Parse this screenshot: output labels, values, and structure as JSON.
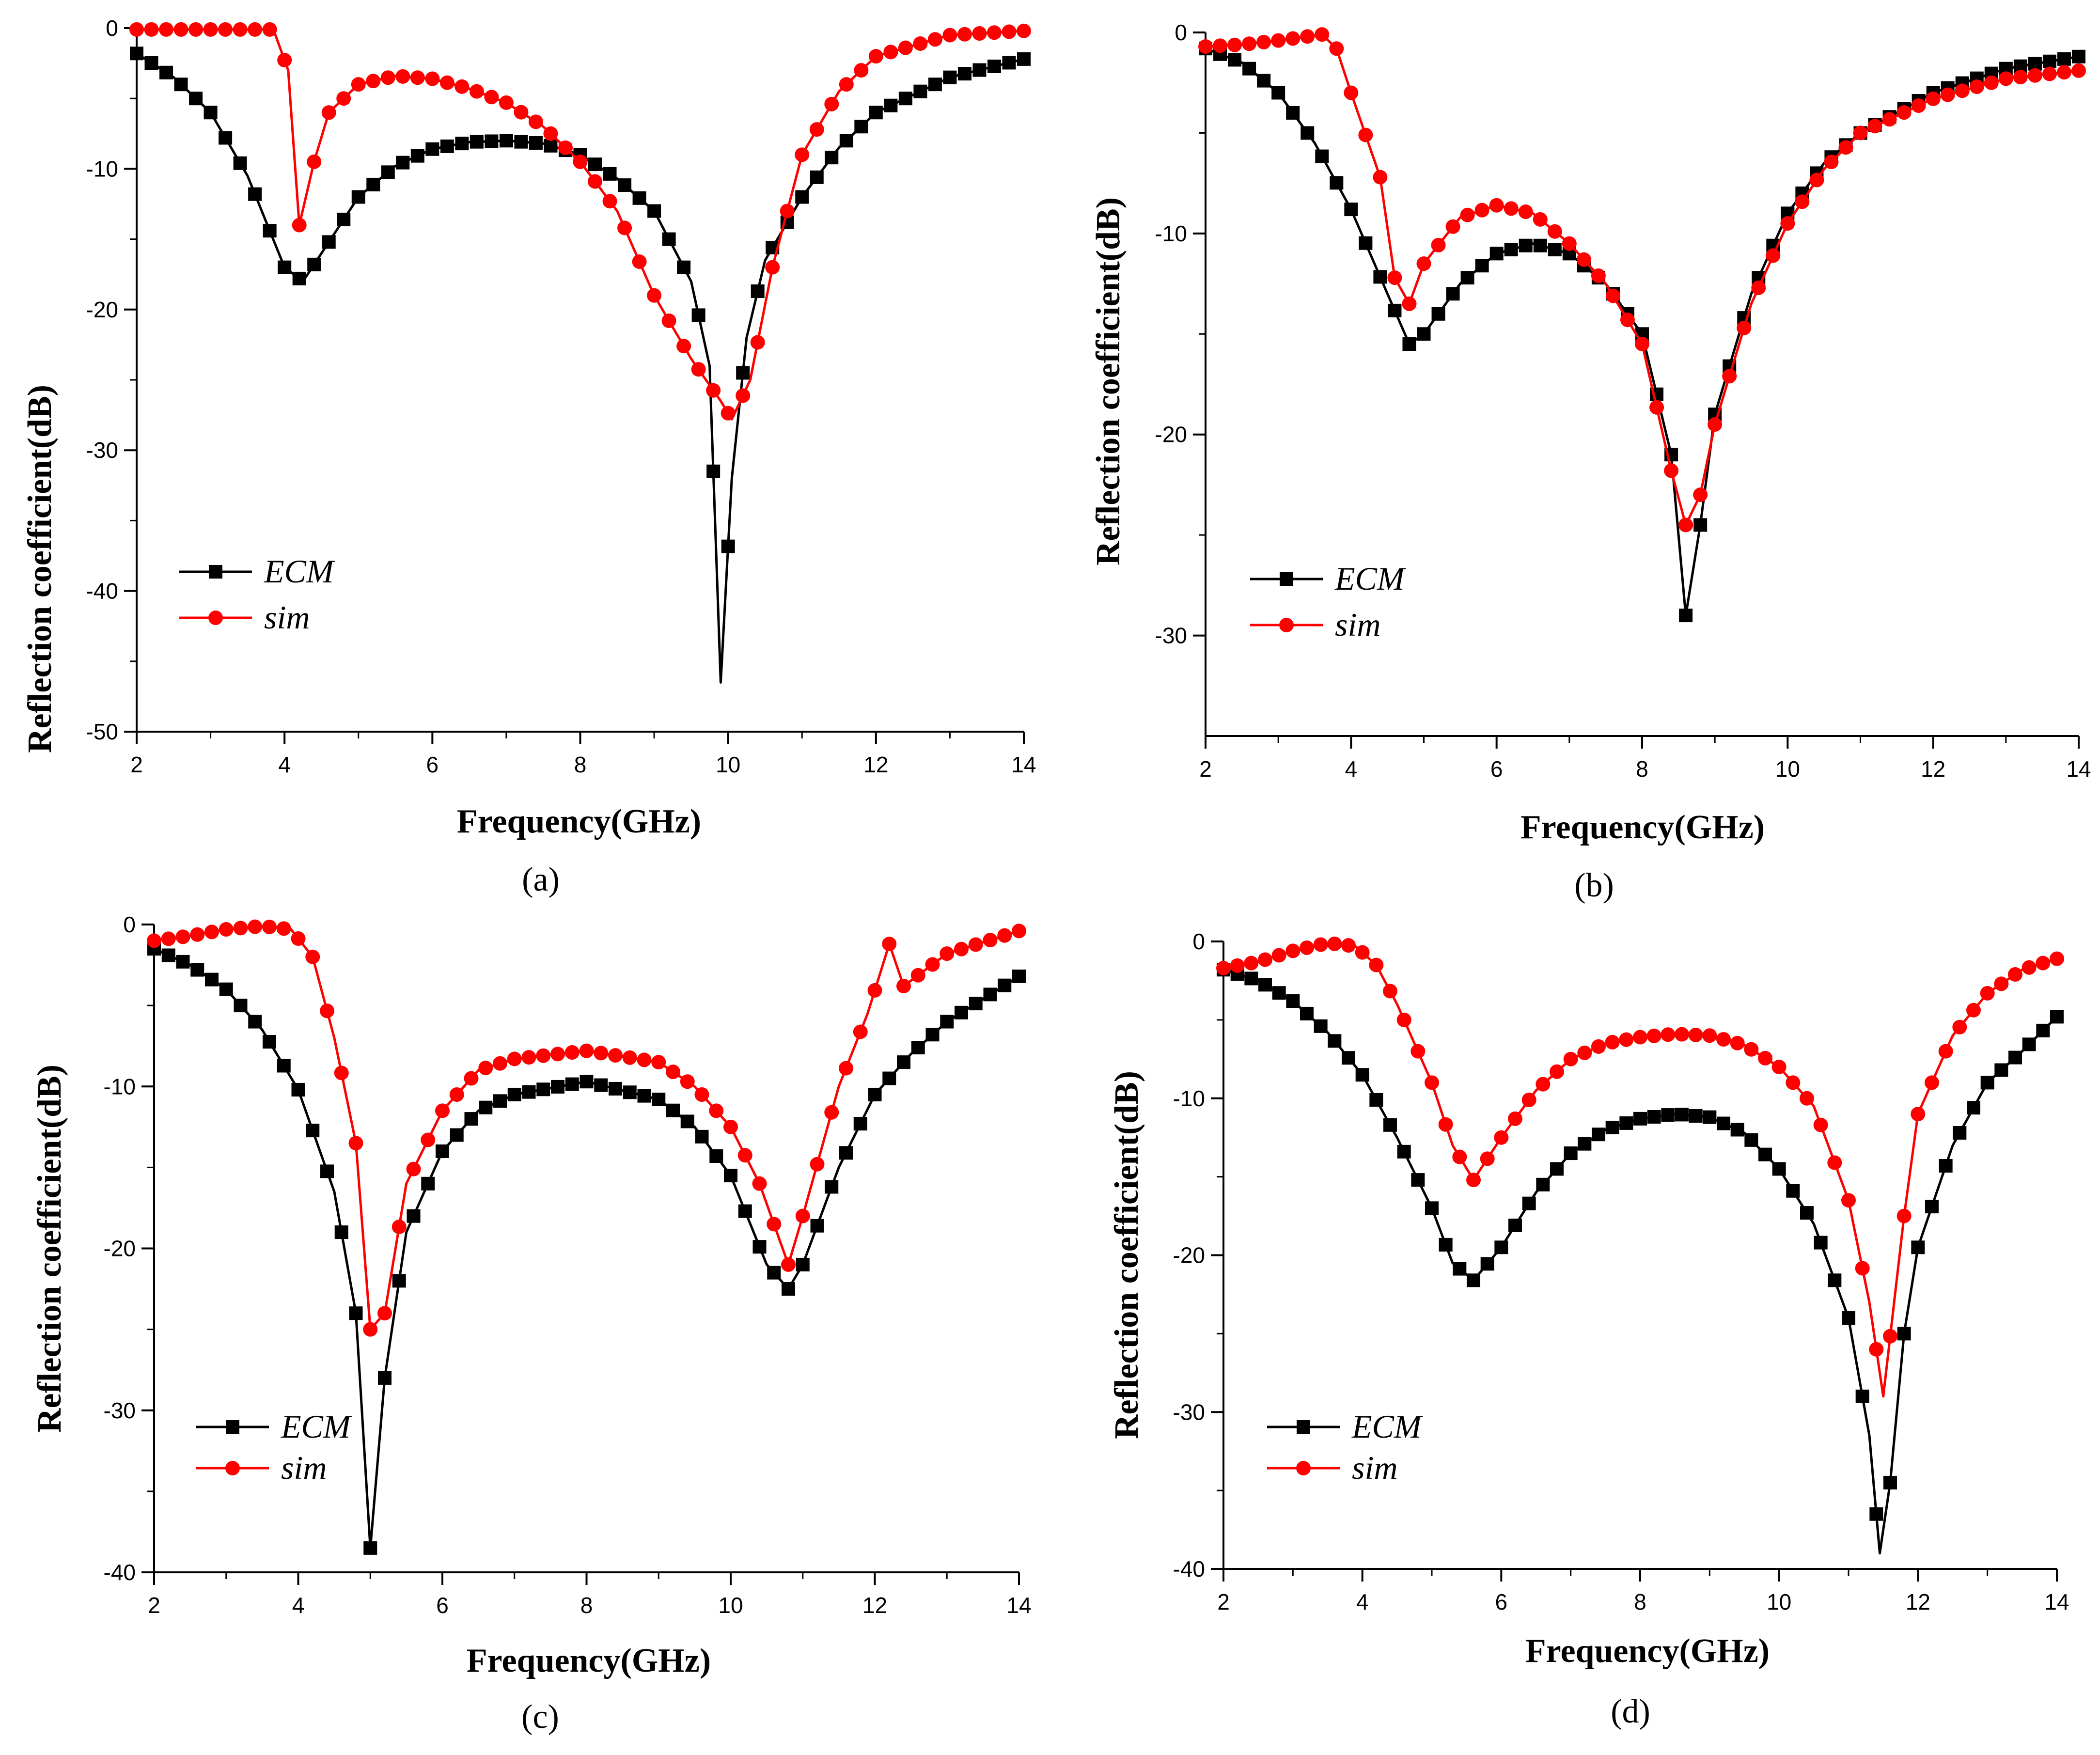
{
  "chart_data": [
    {
      "type": "line",
      "panel_label": "(a)",
      "xlabel": "Frequency(GHz)",
      "ylabel": "Reflection coefficient(dB)",
      "xlim": [
        2,
        14
      ],
      "ylim": [
        -50,
        0
      ],
      "xticks": [
        2,
        4,
        6,
        8,
        10,
        12,
        14
      ],
      "yticks": [
        0,
        -10,
        -20,
        -30,
        -40,
        -50
      ],
      "legend": "lower-left",
      "series": [
        {
          "name": "ECM",
          "color": "#000000",
          "marker": "square",
          "points": [
            [
              2,
              -1.8
            ],
            [
              2.5,
              -3.5
            ],
            [
              3,
              -6
            ],
            [
              3.5,
              -10.5
            ],
            [
              4,
              -17
            ],
            [
              4.25,
              -18
            ],
            [
              4.5,
              -16
            ],
            [
              5,
              -12
            ],
            [
              5.5,
              -9.8
            ],
            [
              6,
              -8.6
            ],
            [
              6.5,
              -8.1
            ],
            [
              7,
              -8
            ],
            [
              7.5,
              -8.2
            ],
            [
              8,
              -9
            ],
            [
              8.5,
              -10.7
            ],
            [
              9,
              -13
            ],
            [
              9.5,
              -18
            ],
            [
              9.75,
              -24
            ],
            [
              9.9,
              -46.5
            ],
            [
              10.05,
              -32
            ],
            [
              10.25,
              -22
            ],
            [
              10.5,
              -16.5
            ],
            [
              11,
              -12
            ],
            [
              11.5,
              -8.5
            ],
            [
              12,
              -6
            ],
            [
              13,
              -3.5
            ],
            [
              14,
              -2.2
            ]
          ]
        },
        {
          "name": "sim",
          "color": "#ff0000",
          "marker": "circle",
          "points": [
            [
              2,
              -0.1
            ],
            [
              3,
              -0.1
            ],
            [
              3.85,
              -0.1
            ],
            [
              4.05,
              -3
            ],
            [
              4.2,
              -14
            ],
            [
              4.4,
              -9.5
            ],
            [
              4.6,
              -6
            ],
            [
              5,
              -4
            ],
            [
              5.5,
              -3.4
            ],
            [
              6,
              -3.6
            ],
            [
              6.5,
              -4.3
            ],
            [
              7,
              -5.3
            ],
            [
              7.5,
              -7
            ],
            [
              8,
              -9.5
            ],
            [
              8.5,
              -13
            ],
            [
              9,
              -19
            ],
            [
              9.5,
              -23.5
            ],
            [
              9.9,
              -26.5
            ],
            [
              10.05,
              -27.8
            ],
            [
              10.3,
              -25
            ],
            [
              10.6,
              -17
            ],
            [
              11,
              -9
            ],
            [
              11.5,
              -4.5
            ],
            [
              12,
              -2
            ],
            [
              13,
              -0.5
            ],
            [
              14,
              -0.2
            ]
          ]
        }
      ]
    },
    {
      "type": "line",
      "panel_label": "(b)",
      "xlabel": "Frequency(GHz)",
      "ylabel": "Reflection coefficient(dB)",
      "xlim": [
        2,
        14
      ],
      "ylim": [
        -35,
        0
      ],
      "xticks": [
        2,
        4,
        6,
        8,
        10,
        12,
        14
      ],
      "yticks": [
        0,
        -10,
        -20,
        -30
      ],
      "legend": "lower-left",
      "series": [
        {
          "name": "ECM",
          "color": "#000000",
          "marker": "square",
          "points": [
            [
              2,
              -0.8
            ],
            [
              2.5,
              -1.5
            ],
            [
              3,
              -3
            ],
            [
              3.5,
              -5.5
            ],
            [
              4,
              -8.8
            ],
            [
              4.5,
              -13
            ],
            [
              4.8,
              -15.5
            ],
            [
              5,
              -15
            ],
            [
              5.5,
              -12.5
            ],
            [
              6,
              -11
            ],
            [
              6.5,
              -10.5
            ],
            [
              7,
              -11
            ],
            [
              7.5,
              -12.5
            ],
            [
              8,
              -15
            ],
            [
              8.4,
              -21
            ],
            [
              8.6,
              -29
            ],
            [
              8.8,
              -24.5
            ],
            [
              9,
              -19
            ],
            [
              9.5,
              -13
            ],
            [
              10,
              -9
            ],
            [
              10.5,
              -6.5
            ],
            [
              11,
              -5
            ],
            [
              12,
              -3
            ],
            [
              13,
              -1.8
            ],
            [
              14,
              -1.2
            ]
          ]
        },
        {
          "name": "sim",
          "color": "#ff0000",
          "marker": "circle",
          "points": [
            [
              2,
              -0.7
            ],
            [
              2.5,
              -0.6
            ],
            [
              3,
              -0.4
            ],
            [
              3.6,
              -0.1
            ],
            [
              3.8,
              -0.8
            ],
            [
              4,
              -3
            ],
            [
              4.4,
              -7.2
            ],
            [
              4.6,
              -12.2
            ],
            [
              4.8,
              -13.5
            ],
            [
              5,
              -11.5
            ],
            [
              5.5,
              -9.2
            ],
            [
              6,
              -8.6
            ],
            [
              6.5,
              -9
            ],
            [
              7,
              -10.5
            ],
            [
              7.5,
              -12.5
            ],
            [
              8,
              -15.5
            ],
            [
              8.4,
              -21.8
            ],
            [
              8.6,
              -24.5
            ],
            [
              8.8,
              -23
            ],
            [
              9,
              -19.5
            ],
            [
              9.5,
              -13.5
            ],
            [
              10,
              -9.5
            ],
            [
              10.5,
              -6.8
            ],
            [
              11,
              -5
            ],
            [
              12,
              -3.3
            ],
            [
              13,
              -2.3
            ],
            [
              14,
              -1.9
            ]
          ]
        }
      ]
    },
    {
      "type": "line",
      "panel_label": "(c)",
      "xlabel": "Frequency(GHz)",
      "ylabel": "Reflection coefficient(dB)",
      "xlim": [
        2,
        14
      ],
      "ylim": [
        -40,
        0
      ],
      "xticks": [
        2,
        4,
        6,
        8,
        10,
        12,
        14
      ],
      "yticks": [
        0,
        -10,
        -20,
        -30,
        -40
      ],
      "legend": "lower-left",
      "series": [
        {
          "name": "ECM",
          "color": "#000000",
          "marker": "square",
          "points": [
            [
              2,
              -1.5
            ],
            [
              2.5,
              -2.5
            ],
            [
              3,
              -4
            ],
            [
              3.5,
              -6.5
            ],
            [
              4,
              -10.2
            ],
            [
              4.5,
              -16.5
            ],
            [
              4.8,
              -24
            ],
            [
              5,
              -38.5
            ],
            [
              5.2,
              -28
            ],
            [
              5.5,
              -19
            ],
            [
              6,
              -14
            ],
            [
              6.5,
              -11.5
            ],
            [
              7,
              -10.5
            ],
            [
              8,
              -9.7
            ],
            [
              9,
              -10.8
            ],
            [
              9.5,
              -12.5
            ],
            [
              10,
              -15.5
            ],
            [
              10.5,
              -21
            ],
            [
              10.8,
              -22.5
            ],
            [
              11,
              -21
            ],
            [
              11.5,
              -15
            ],
            [
              12,
              -10.5
            ],
            [
              12.5,
              -8
            ],
            [
              13,
              -6
            ],
            [
              14,
              -3.2
            ]
          ]
        },
        {
          "name": "sim",
          "color": "#ff0000",
          "marker": "circle",
          "points": [
            [
              2,
              -1
            ],
            [
              2.5,
              -0.7
            ],
            [
              3,
              -0.3
            ],
            [
              3.5,
              -0.1
            ],
            [
              3.9,
              -0.3
            ],
            [
              4.2,
              -2
            ],
            [
              4.5,
              -7
            ],
            [
              4.8,
              -13.5
            ],
            [
              5,
              -25
            ],
            [
              5.2,
              -24
            ],
            [
              5.5,
              -16
            ],
            [
              6,
              -11.5
            ],
            [
              6.5,
              -9
            ],
            [
              7,
              -8.3
            ],
            [
              8,
              -7.8
            ],
            [
              9,
              -8.5
            ],
            [
              9.5,
              -10
            ],
            [
              10,
              -12.5
            ],
            [
              10.4,
              -16
            ],
            [
              10.8,
              -21
            ],
            [
              11,
              -18
            ],
            [
              11.5,
              -10
            ],
            [
              11.9,
              -5.5
            ],
            [
              12.2,
              -1.2
            ],
            [
              12.4,
              -3.8
            ],
            [
              13,
              -1.8
            ],
            [
              14,
              -0.4
            ]
          ]
        }
      ]
    },
    {
      "type": "line",
      "panel_label": "(d)",
      "xlabel": "Frequency(GHz)",
      "ylabel": "Reflection coefficient(dB)",
      "xlim": [
        2,
        14
      ],
      "ylim": [
        -40,
        0
      ],
      "xticks": [
        2,
        4,
        6,
        8,
        10,
        12,
        14
      ],
      "yticks": [
        0,
        -10,
        -20,
        -30,
        -40
      ],
      "legend": "lower-left",
      "series": [
        {
          "name": "ECM",
          "color": "#000000",
          "marker": "square",
          "points": [
            [
              2,
              -1.8
            ],
            [
              2.5,
              -2.5
            ],
            [
              3,
              -3.8
            ],
            [
              3.5,
              -5.8
            ],
            [
              4,
              -8.5
            ],
            [
              4.5,
              -12.5
            ],
            [
              5,
              -17
            ],
            [
              5.3,
              -20.5
            ],
            [
              5.6,
              -21.6
            ],
            [
              6,
              -19.5
            ],
            [
              6.5,
              -16
            ],
            [
              7,
              -13.5
            ],
            [
              7.5,
              -12
            ],
            [
              8,
              -11.3
            ],
            [
              8.5,
              -11
            ],
            [
              9,
              -11.2
            ],
            [
              9.5,
              -12.2
            ],
            [
              10,
              -14.5
            ],
            [
              10.5,
              -18
            ],
            [
              11,
              -24
            ],
            [
              11.3,
              -31.5
            ],
            [
              11.45,
              -39
            ],
            [
              11.6,
              -34.5
            ],
            [
              11.8,
              -25
            ],
            [
              12,
              -19.5
            ],
            [
              12.5,
              -13
            ],
            [
              13,
              -9
            ],
            [
              13.5,
              -7
            ],
            [
              14,
              -4.8
            ]
          ]
        },
        {
          "name": "sim",
          "color": "#ff0000",
          "marker": "circle",
          "points": [
            [
              2,
              -1.7
            ],
            [
              2.5,
              -1.3
            ],
            [
              3,
              -0.6
            ],
            [
              3.5,
              -0.1
            ],
            [
              3.9,
              -0.3
            ],
            [
              4.2,
              -1.5
            ],
            [
              4.5,
              -4
            ],
            [
              5,
              -9
            ],
            [
              5.3,
              -13
            ],
            [
              5.6,
              -15.2
            ],
            [
              6,
              -12.5
            ],
            [
              6.5,
              -9.5
            ],
            [
              7,
              -7.5
            ],
            [
              7.5,
              -6.5
            ],
            [
              8,
              -6.1
            ],
            [
              8.5,
              -5.9
            ],
            [
              9,
              -6
            ],
            [
              9.5,
              -6.6
            ],
            [
              10,
              -8
            ],
            [
              10.5,
              -10.5
            ],
            [
              11,
              -16.5
            ],
            [
              11.3,
              -23
            ],
            [
              11.5,
              -29
            ],
            [
              11.8,
              -17.5
            ],
            [
              12,
              -11
            ],
            [
              12.5,
              -6
            ],
            [
              13,
              -3.3
            ],
            [
              13.5,
              -1.8
            ],
            [
              14,
              -1.1
            ]
          ]
        }
      ]
    }
  ]
}
